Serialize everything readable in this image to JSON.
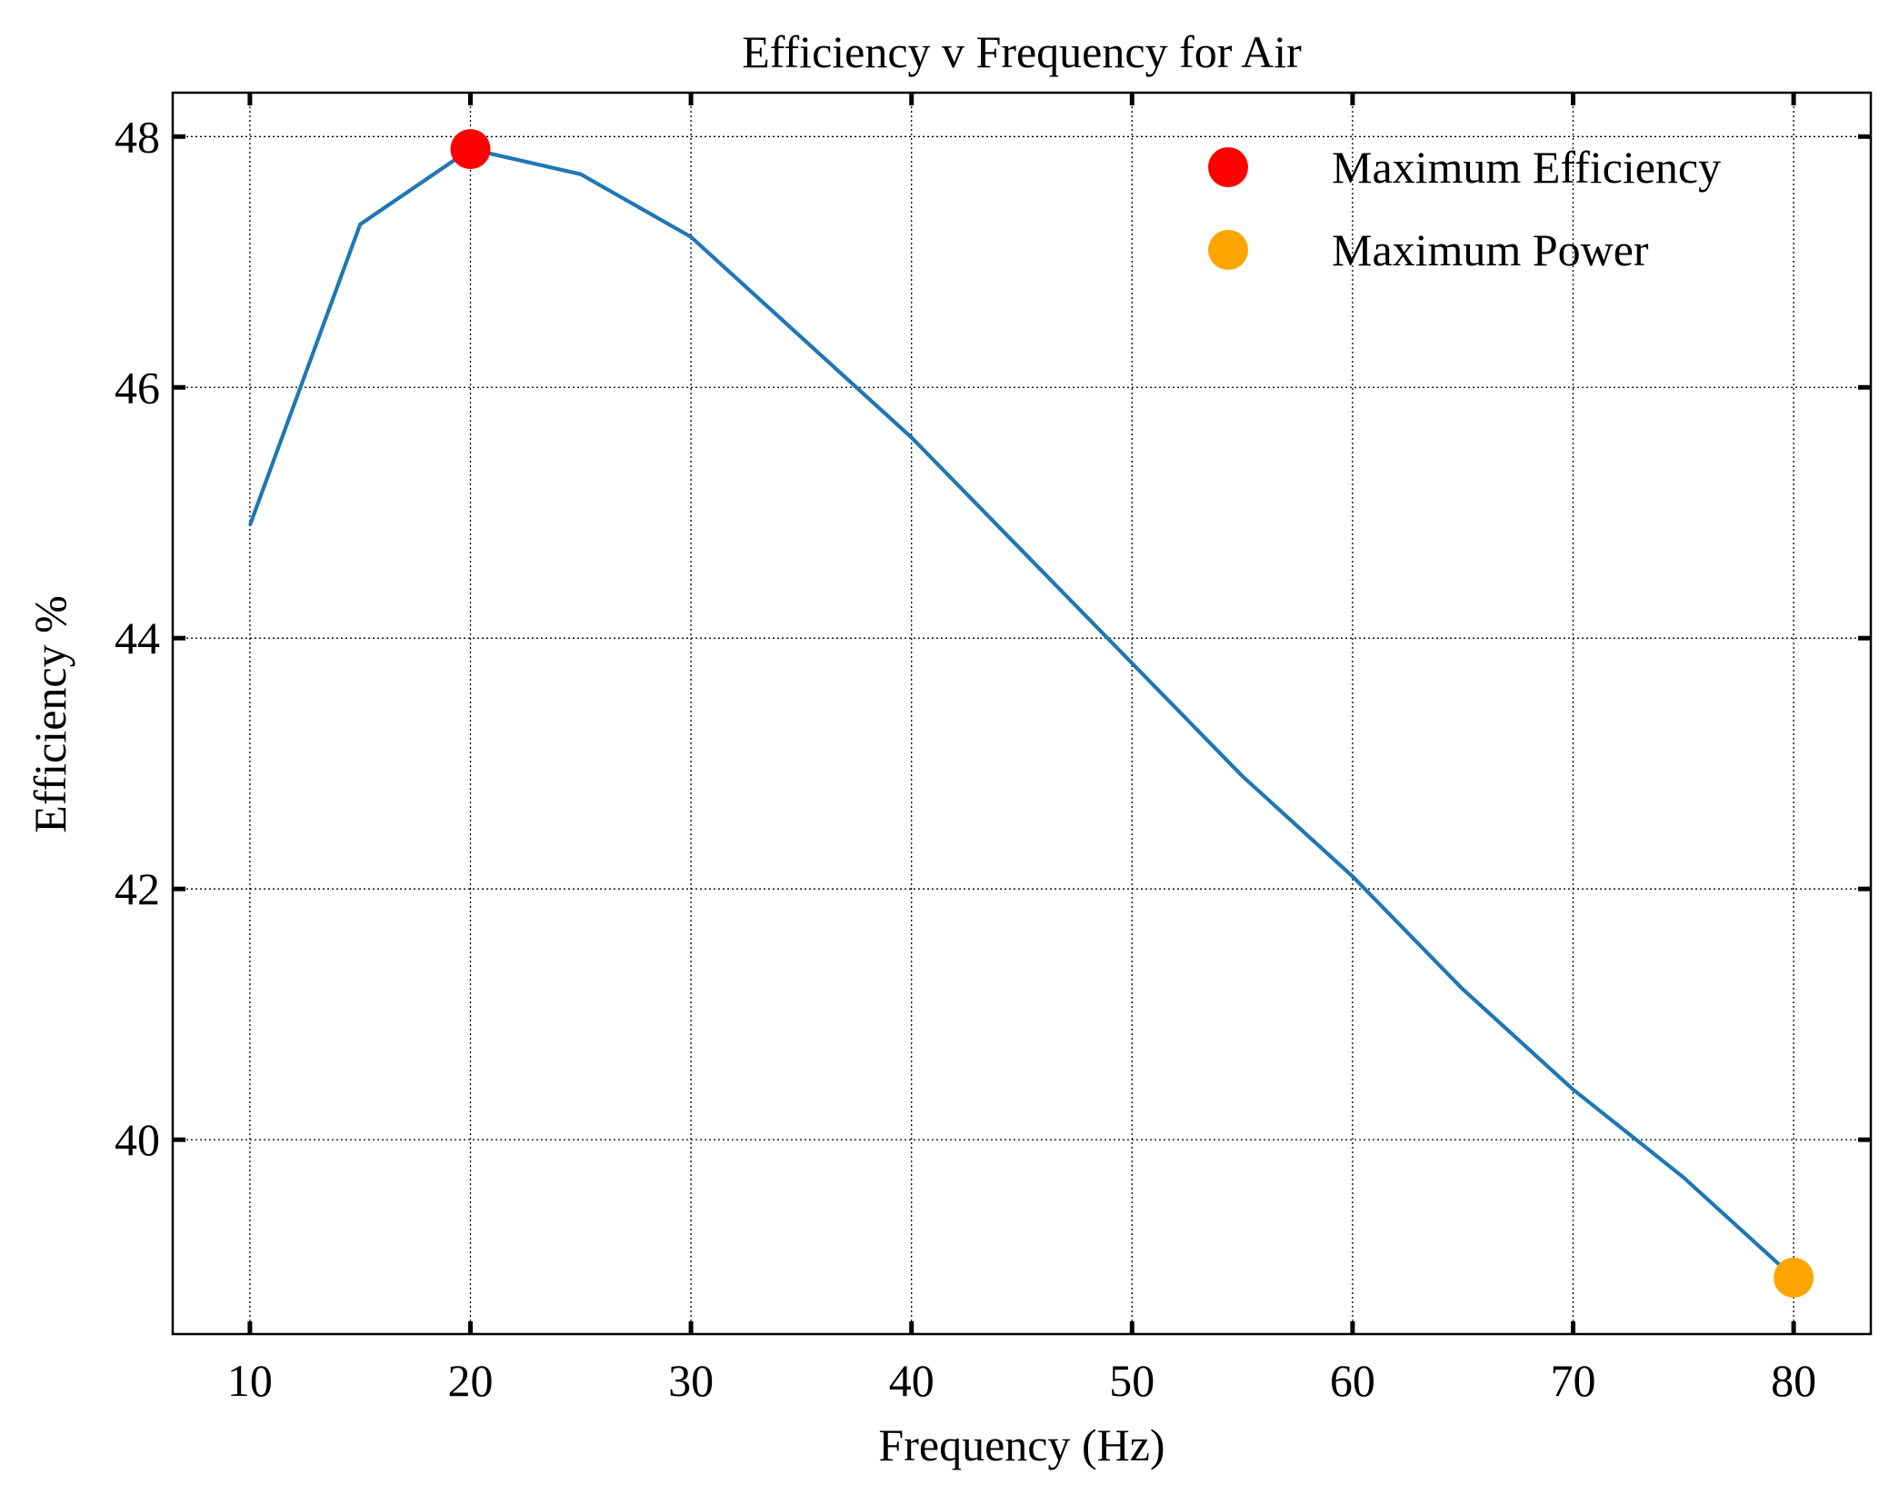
{
  "chart_data": {
    "type": "line",
    "title": "Efficiency v Frequency for Air",
    "xlabel": "Frequency (Hz)",
    "ylabel": "Efficiency %",
    "xlim": [
      6.5,
      83.5
    ],
    "ylim": [
      38.45,
      48.35
    ],
    "xticks": [
      10,
      20,
      30,
      40,
      50,
      60,
      70,
      80
    ],
    "xtick_labels": [
      "10",
      "20",
      "30",
      "40",
      "50",
      "60",
      "70",
      "80"
    ],
    "yticks": [
      40,
      42,
      44,
      46,
      48
    ],
    "ytick_labels": [
      "40",
      "42",
      "44",
      "46",
      "48"
    ],
    "grid": true,
    "legend_position": "top-right",
    "line": {
      "color": "#1f77b4",
      "x": [
        10,
        15,
        20,
        25,
        30,
        35,
        40,
        45,
        50,
        55,
        60,
        65,
        70,
        75,
        80
      ],
      "y": [
        44.9,
        47.3,
        47.9,
        47.7,
        47.2,
        46.4,
        45.6,
        44.7,
        43.8,
        42.9,
        42.1,
        41.2,
        40.4,
        39.7,
        38.9
      ]
    },
    "markers": [
      {
        "name": "Maximum Efficiency",
        "x": 20,
        "y": 47.9,
        "color": "#ff0000"
      },
      {
        "name": "Maximum Power",
        "x": 80,
        "y": 38.9,
        "color": "#ffa500"
      }
    ]
  }
}
